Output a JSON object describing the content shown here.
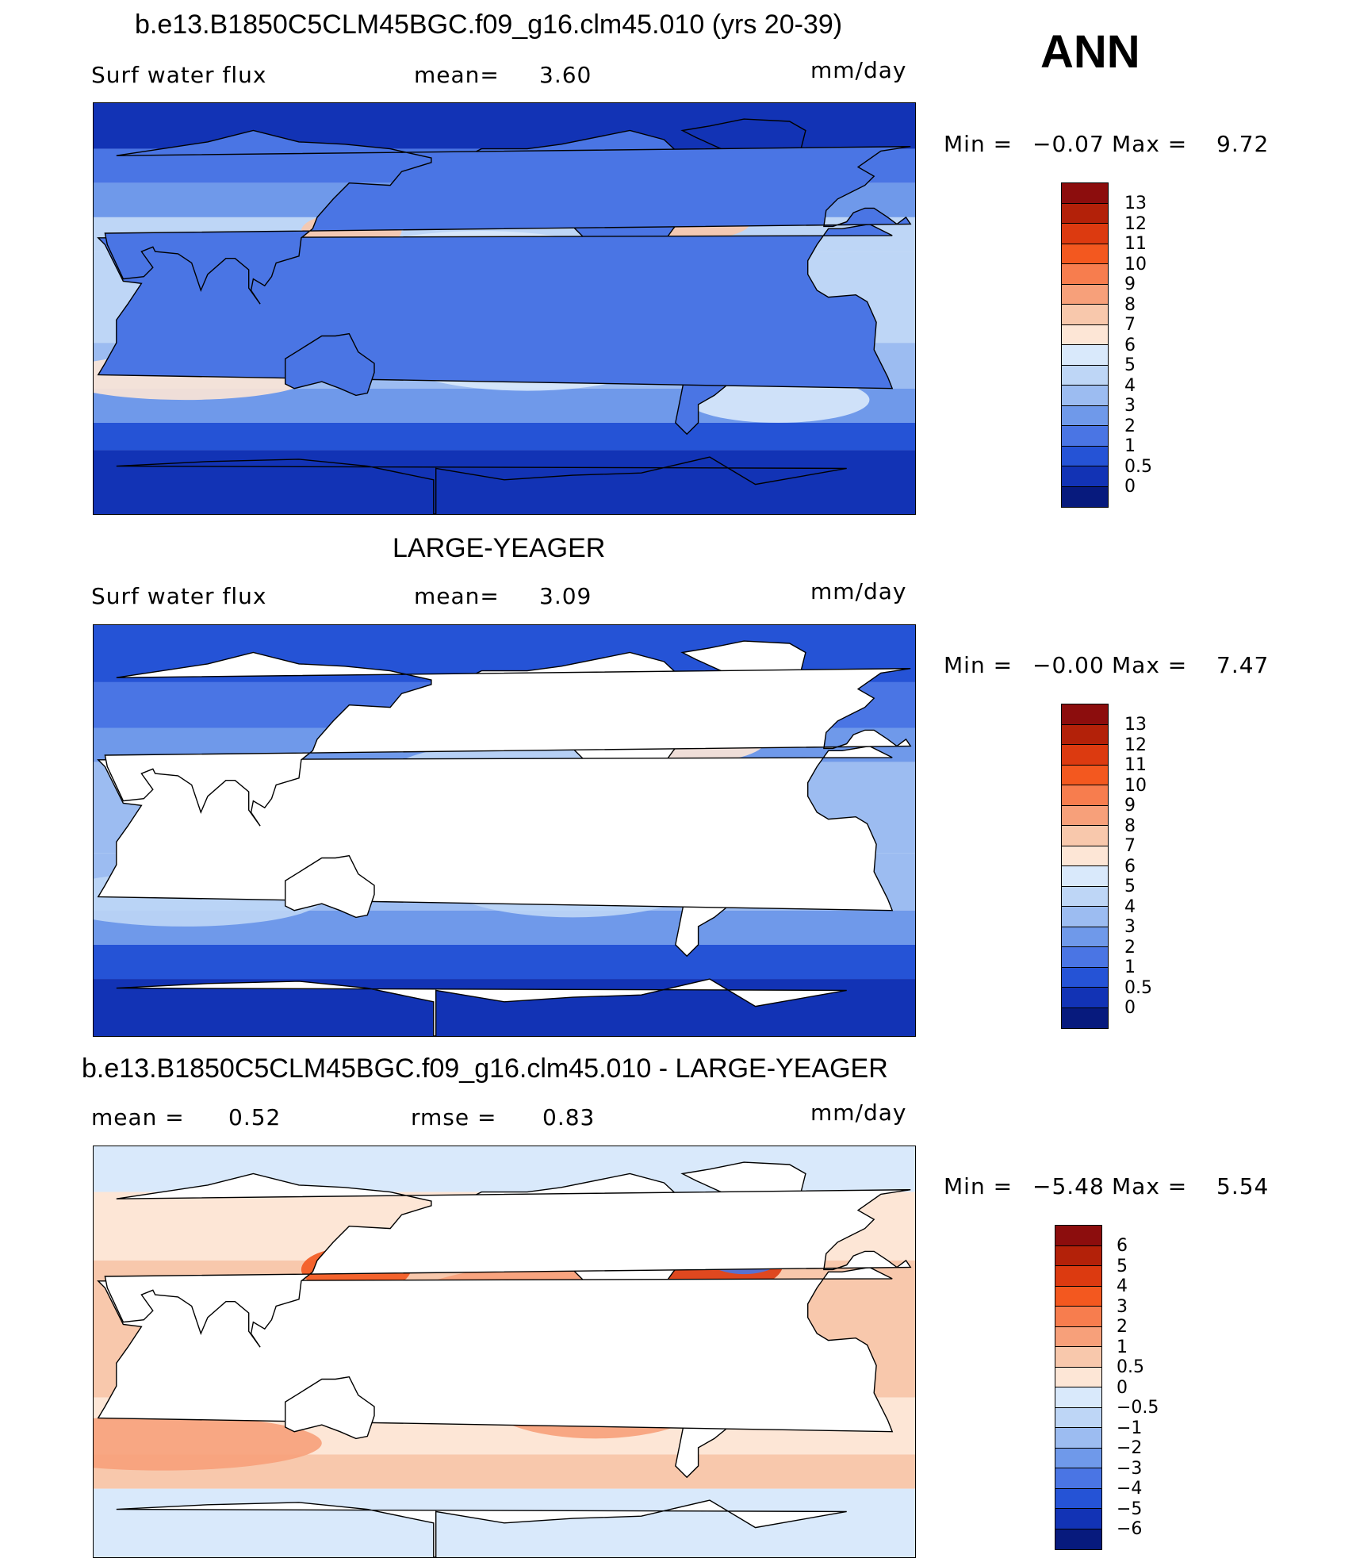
{
  "season": "ANN",
  "panels": [
    {
      "title": "b.e13.B1850C5CLM45BGC.f09_g16.clm45.010 (yrs 20-39)",
      "left_label": "Surf water flux",
      "mid_label": "mean=",
      "mid_value": "3.60",
      "units": "mm/day",
      "min_label": "Min =",
      "min_value": "−0.07",
      "max_label": "Max =",
      "max_value": "9.72",
      "land_masked": false
    },
    {
      "title": "LARGE-YEAGER",
      "left_label": "Surf water flux",
      "mid_label": "mean=",
      "mid_value": "3.09",
      "units": "mm/day",
      "min_label": "Min =",
      "min_value": "−0.00",
      "max_label": "Max =",
      "max_value": "7.47",
      "land_masked": true
    },
    {
      "title": "b.e13.B1850C5CLM45BGC.f09_g16.clm45.010 - LARGE-YEAGER",
      "left_label": "mean =",
      "left_value": "0.52",
      "mid_label": "rmse =",
      "mid_value": "0.83",
      "units": "mm/day",
      "min_label": "Min =",
      "min_value": "−5.48",
      "max_label": "Max =",
      "max_value": "5.54",
      "land_masked": true
    }
  ],
  "colorbars": {
    "absolute": {
      "labels": [
        "13",
        "12",
        "11",
        "10",
        "9",
        "8",
        "7",
        "6",
        "5",
        "4",
        "3",
        "2",
        "1",
        "0.5",
        "0"
      ],
      "colors": [
        "#8c0d0d",
        "#b32109",
        "#dc3a10",
        "#f3581f",
        "#f77d4e",
        "#f7a07a",
        "#f8c8ac",
        "#fde6d6",
        "#d9e9fb",
        "#bed6f6",
        "#9cbcf1",
        "#6f99ea",
        "#4a75e4",
        "#2553d6",
        "#1233b5",
        "#071a7d"
      ]
    },
    "difference": {
      "labels": [
        "6",
        "5",
        "4",
        "3",
        "2",
        "1",
        "0.5",
        "0",
        "−0.5",
        "−1",
        "−2",
        "−3",
        "−4",
        "−5",
        "−6"
      ],
      "colors": [
        "#8c0d0d",
        "#b32109",
        "#dc3a10",
        "#f3581f",
        "#f77d4e",
        "#f7a07a",
        "#f8c8ac",
        "#fde6d6",
        "#d9e9fb",
        "#bed6f6",
        "#9cbcf1",
        "#6f99ea",
        "#4a75e4",
        "#2553d6",
        "#1233b5",
        "#071a7d"
      ]
    }
  }
}
